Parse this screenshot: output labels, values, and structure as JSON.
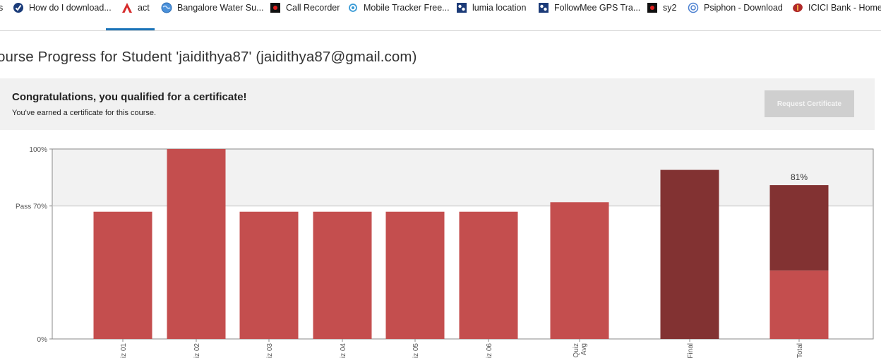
{
  "bookmarks": [
    {
      "label": "s",
      "icon": "none"
    },
    {
      "label": "How do I download...",
      "icon": "circle-check-icon"
    },
    {
      "label": "act",
      "icon": "red-a-logo-icon"
    },
    {
      "label": "Bangalore Water Su...",
      "icon": "globe-icon"
    },
    {
      "label": "Call Recorder",
      "icon": "red-dot-app-icon"
    },
    {
      "label": "Mobile Tracker Free...",
      "icon": "swirl-icon"
    },
    {
      "label": "lumia location",
      "icon": "map-app-icon"
    },
    {
      "label": "FollowMee GPS Tra...",
      "icon": "map-app-icon"
    },
    {
      "label": "sy2",
      "icon": "red-dot-app-icon"
    },
    {
      "label": "Psiphon - Download",
      "icon": "psiphon-icon"
    },
    {
      "label": "ICICI Bank - Home",
      "icon": "icici-logo-icon"
    }
  ],
  "page": {
    "title": "ourse Progress for Student 'jaidithya87' (jaidithya87@gmail.com)"
  },
  "certificate": {
    "title": "Congratulations, you qualified for a certificate!",
    "subtitle": "You've earned a certificate for this course.",
    "button_label": "Request Certificate"
  },
  "colors": {
    "quiz_bar": "#c44e4e",
    "exam_bar": "#823232",
    "pass_band": "#f2f2f2",
    "accent": "#1a73b8"
  },
  "chart_data": {
    "type": "bar",
    "categories": [
      "iz 01",
      "iz 02",
      "iz 03",
      "iz 04",
      "iz 05",
      "iz 06",
      "Quiz Avg",
      "Final",
      "Total"
    ],
    "values": [
      67,
      100,
      67,
      67,
      67,
      67,
      72,
      89,
      81
    ],
    "total_stack": {
      "quiz_part": 36,
      "exam_part": 45
    },
    "total_label": "81%",
    "ylim": [
      0,
      100
    ],
    "y_ticks": [
      {
        "value": 100,
        "label": "100%"
      },
      {
        "value": 70,
        "label": "Pass 70%"
      },
      {
        "value": 0,
        "label": "0%"
      }
    ],
    "pass_threshold": 70
  }
}
